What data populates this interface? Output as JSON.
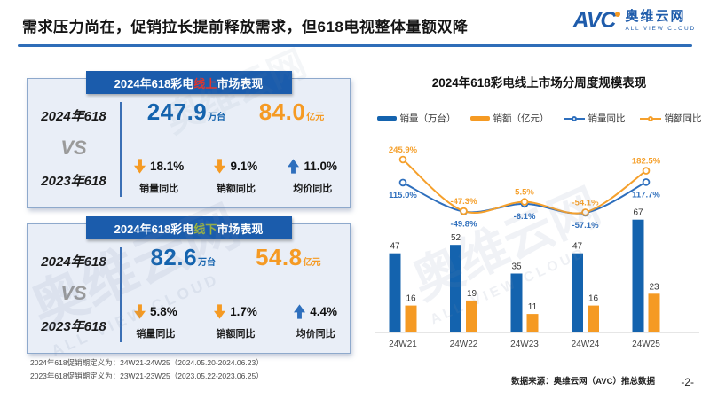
{
  "header": {
    "title": "需求压力尚在，促销拉长提前释放需求，但618电视整体量额双降",
    "logo": {
      "avc": "AVC",
      "cn": "奥维云网",
      "en": "ALL VIEW CLOUD"
    }
  },
  "watermark": {
    "text": "奥维云网",
    "sub": "ALL VIEW CLOUD"
  },
  "cards": [
    {
      "title_prefix": "2024年618彩电",
      "title_channel": "线上",
      "title_suffix": "市场表现",
      "channel_color": "#e2342b",
      "year_top": "2024年618",
      "vs": "VS",
      "year_bottom": "2023年618",
      "volume": {
        "value": "247.9",
        "unit": "万台"
      },
      "amount": {
        "value": "84.0",
        "unit": "亿元"
      },
      "metrics": [
        {
          "direction": "down",
          "value": "18.1%",
          "label": "销量同比"
        },
        {
          "direction": "down",
          "value": "9.1%",
          "label": "销额同比"
        },
        {
          "direction": "up",
          "value": "11.0%",
          "label": "均价同比"
        }
      ]
    },
    {
      "title_prefix": "2024年618彩电",
      "title_channel": "线下",
      "title_suffix": "市场表现",
      "channel_color": "#9ab33c",
      "year_top": "2024年618",
      "vs": "VS",
      "year_bottom": "2023年618",
      "volume": {
        "value": "82.6",
        "unit": "万台"
      },
      "amount": {
        "value": "54.8",
        "unit": "亿元"
      },
      "metrics": [
        {
          "direction": "down",
          "value": "5.8%",
          "label": "销量同比"
        },
        {
          "direction": "down",
          "value": "1.7%",
          "label": "销额同比"
        },
        {
          "direction": "up",
          "value": "4.4%",
          "label": "均价同比"
        }
      ]
    }
  ],
  "footnotes": [
    "2024年618促销期定义为：24W21-24W25（2024.05.20-2024.06.23）",
    "2023年618促销期定义为：23W21-23W25（2023.05.22-2023.06.25）"
  ],
  "chart_data": {
    "type": "bar+line",
    "title": "2024年618彩电线上市场分周度规模表现",
    "categories": [
      "24W21",
      "24W22",
      "24W23",
      "24W24",
      "24W25"
    ],
    "series": [
      {
        "name": "销量（万台）",
        "type": "bar",
        "color": "#1463ae",
        "values": [
          47,
          52,
          35,
          47,
          67
        ]
      },
      {
        "name": "销额（亿元）",
        "type": "bar",
        "color": "#f59a23",
        "values": [
          16,
          19,
          11,
          16,
          23
        ]
      },
      {
        "name": "销量同比",
        "type": "line",
        "color": "#2e6fbd",
        "values": [
          115.0,
          -49.8,
          -6.1,
          -57.1,
          117.7
        ],
        "labels": [
          "115.0%",
          "-49.8%",
          "-6.1%",
          "-57.1%",
          "117.7%"
        ],
        "label_pos": "below"
      },
      {
        "name": "销额同比",
        "type": "line",
        "color": "#f5a02c",
        "values": [
          245.9,
          -47.3,
          5.5,
          -54.1,
          182.5
        ],
        "labels": [
          "245.9%",
          "-47.3%",
          "5.5%",
          "-54.1%",
          "182.5%"
        ],
        "label_pos": "above"
      }
    ],
    "y_left_label": "销量（万台）/ 销额（亿元）",
    "y_left_range": [
      0,
      70
    ],
    "y_right_range": [
      -100,
      300
    ],
    "grid": false,
    "legend_position": "top"
  },
  "footer": {
    "source": "数据来源：奥维云网（AVC）推总数据",
    "page": "-2-"
  }
}
